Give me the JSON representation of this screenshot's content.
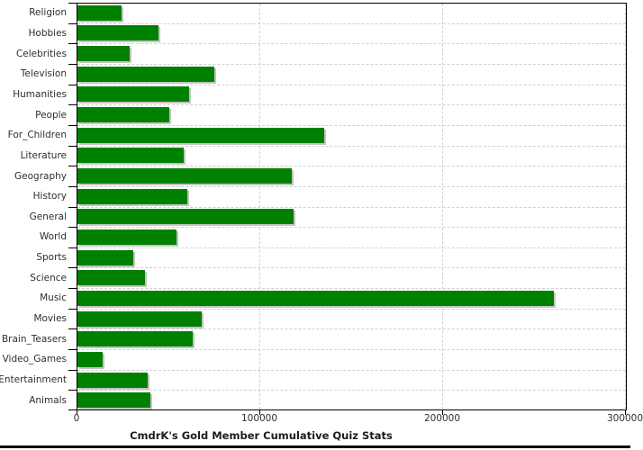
{
  "chart_data": {
    "type": "bar",
    "orientation": "horizontal",
    "title": "CmdrK's Gold Member Cumulative Quiz Stats",
    "categories": [
      "Religion",
      "Hobbies",
      "Celebrities",
      "Television",
      "Humanities",
      "People",
      "For_Children",
      "Literature",
      "Geography",
      "History",
      "General",
      "World",
      "Sports",
      "Science",
      "Music",
      "Movies",
      "Brain_Teasers",
      "Video_Games",
      "Entertainment",
      "Animals"
    ],
    "values": [
      24000,
      44500,
      28500,
      75000,
      61000,
      50000,
      135000,
      58000,
      117000,
      60000,
      118000,
      54000,
      30500,
      37000,
      260500,
      68000,
      63000,
      14000,
      38500,
      40000
    ],
    "xlabel": "",
    "ylabel": "",
    "xlim": [
      0,
      300000
    ],
    "x_ticks": [
      0,
      100000,
      200000,
      300000
    ],
    "x_tick_labels": [
      "0",
      "100000",
      "200000",
      "300000"
    ],
    "grid": true,
    "legend_position": "none",
    "bar_color": "#008000",
    "bar_shadow_color": "#c4c4c4",
    "gridline_color": "#d0d0d0",
    "axis_color": "#000000",
    "label_color": "#2e2e2e",
    "background_color": "#ffffff"
  }
}
